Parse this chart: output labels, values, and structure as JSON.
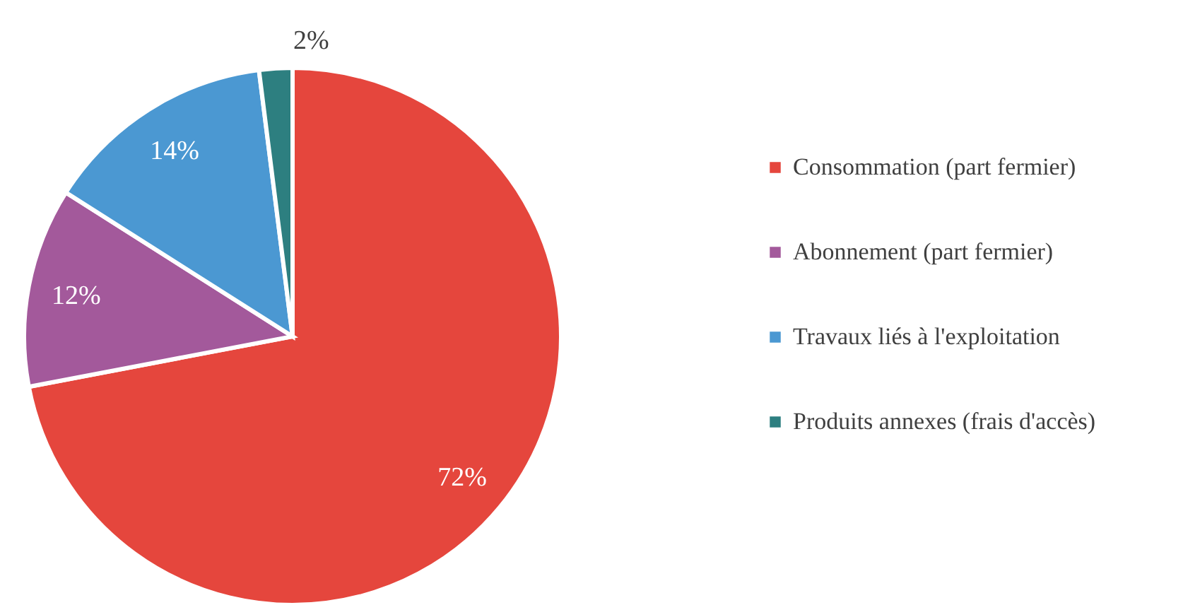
{
  "chart_data": {
    "type": "pie",
    "categories": [
      "Consommation (part fermier)",
      "Abonnement (part fermier)",
      "Travaux liés à l'exploitation",
      "Produits annexes (frais d'accès)"
    ],
    "values": [
      72,
      12,
      14,
      2
    ],
    "colors": [
      "#e5463d",
      "#a3599b",
      "#4b98d2",
      "#2d7f80"
    ],
    "value_labels": [
      "72%",
      "12%",
      "14%",
      "2%"
    ],
    "legend": "right"
  }
}
